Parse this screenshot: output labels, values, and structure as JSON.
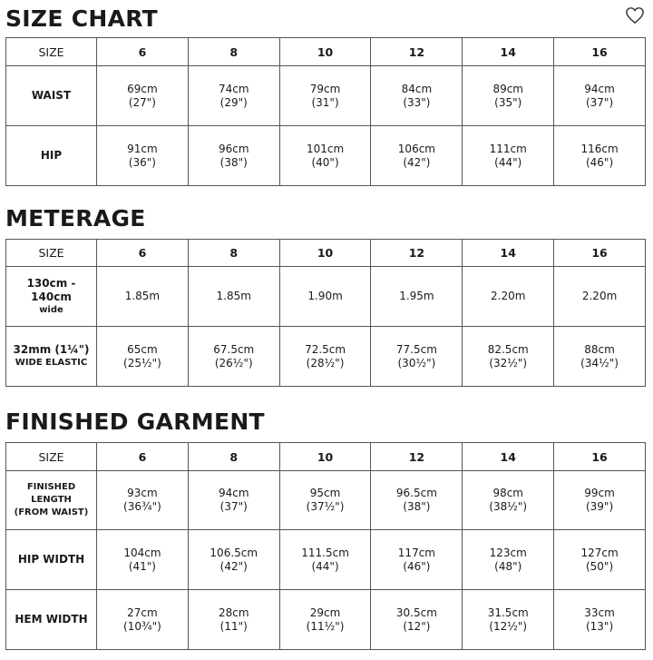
{
  "favorite_icon": "heart-outline-icon",
  "sizes": [
    "6",
    "8",
    "10",
    "12",
    "14",
    "16"
  ],
  "size_chart": {
    "title": "SIZE CHART",
    "header": "SIZE",
    "rows": [
      {
        "label": "WAIST",
        "cm": [
          "69cm",
          "74cm",
          "79cm",
          "84cm",
          "89cm",
          "94cm"
        ],
        "in": [
          "(27\")",
          "(29\")",
          "(31\")",
          "(33\")",
          "(35\")",
          "(37\")"
        ]
      },
      {
        "label": "HIP",
        "cm": [
          "91cm",
          "96cm",
          "101cm",
          "106cm",
          "111cm",
          "116cm"
        ],
        "in": [
          "(36\")",
          "(38\")",
          "(40\")",
          "(42\")",
          "(44\")",
          "(46\")"
        ]
      }
    ]
  },
  "meterage": {
    "title": "METERAGE",
    "header": "SIZE",
    "rows": [
      {
        "label": "130cm - 140cm",
        "label2": "wide",
        "cm": [
          "1.85m",
          "1.85m",
          "1.90m",
          "1.95m",
          "2.20m",
          "2.20m"
        ],
        "in": [
          "",
          "",
          "",
          "",
          "",
          ""
        ]
      },
      {
        "label": "32mm (1¼\")",
        "label2": "WIDE ELASTIC",
        "cm": [
          "65cm",
          "67.5cm",
          "72.5cm",
          "77.5cm",
          "82.5cm",
          "88cm"
        ],
        "in": [
          "(25½\")",
          "(26½\")",
          "(28½\")",
          "(30½\")",
          "(32½\")",
          "(34½\")"
        ]
      }
    ]
  },
  "finished_garment": {
    "title": "FINISHED GARMENT",
    "header": "SIZE",
    "rows": [
      {
        "label": "FINISHED",
        "label2": "LENGTH",
        "label3": "(FROM WAIST)",
        "cm": [
          "93cm",
          "94cm",
          "95cm",
          "96.5cm",
          "98cm",
          "99cm"
        ],
        "in": [
          "(36¾\")",
          "(37\")",
          "(37½\")",
          "(38\")",
          "(38½\")",
          "(39\")"
        ]
      },
      {
        "label": "HIP WIDTH",
        "cm": [
          "104cm",
          "106.5cm",
          "111.5cm",
          "117cm",
          "123cm",
          "127cm"
        ],
        "in": [
          "(41\")",
          "(42\")",
          "(44\")",
          "(46\")",
          "(48\")",
          "(50\")"
        ]
      },
      {
        "label": "HEM WIDTH",
        "cm": [
          "27cm",
          "28cm",
          "29cm",
          "30.5cm",
          "31.5cm",
          "33cm"
        ],
        "in": [
          "(10¾\")",
          "(11\")",
          "(11½\")",
          "(12\")",
          "(12½\")",
          "(13\")"
        ]
      }
    ]
  }
}
